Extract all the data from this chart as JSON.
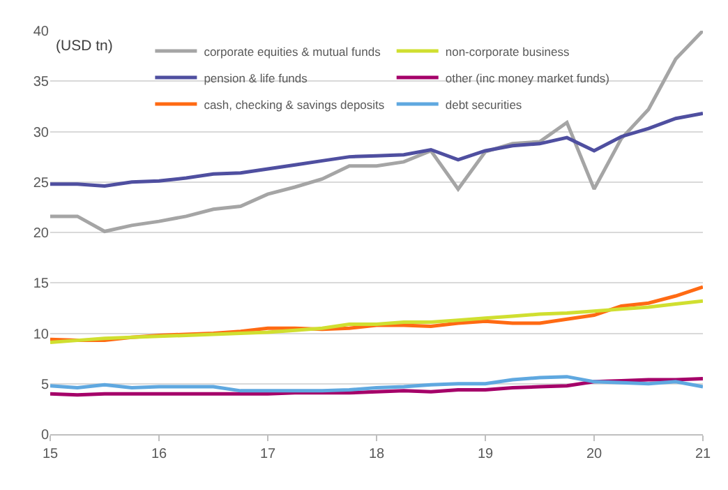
{
  "chart_data": {
    "type": "line",
    "annotations": [
      "(USD tn)"
    ],
    "x": [
      15,
      15.25,
      15.5,
      15.75,
      16,
      16.25,
      16.5,
      16.75,
      17,
      17.25,
      17.5,
      17.75,
      18,
      18.25,
      18.5,
      18.75,
      19,
      19.25,
      19.5,
      19.75,
      20,
      20.25,
      20.5,
      20.75,
      21
    ],
    "series": [
      {
        "name": "corporate equities & mutual funds",
        "color": "#a5a5a5",
        "values": [
          21.6,
          21.6,
          20.1,
          20.7,
          21.1,
          21.6,
          22.3,
          22.6,
          23.8,
          24.5,
          25.3,
          26.6,
          26.6,
          27.0,
          28.1,
          24.3,
          28.0,
          28.8,
          29.0,
          30.9,
          24.3,
          29.3,
          32.2,
          37.2,
          40.0
        ]
      },
      {
        "name": "pension & life funds",
        "color": "#4f4fa0",
        "values": [
          24.8,
          24.8,
          24.6,
          25.0,
          25.1,
          25.4,
          25.8,
          25.9,
          26.3,
          26.7,
          27.1,
          27.5,
          27.6,
          27.7,
          28.2,
          27.2,
          28.1,
          28.6,
          28.8,
          29.4,
          28.1,
          29.5,
          30.3,
          31.3,
          31.8
        ]
      },
      {
        "name": "cash, checking & savings deposits",
        "color": "#ff6a13",
        "values": [
          9.4,
          9.3,
          9.3,
          9.6,
          9.8,
          9.9,
          10.0,
          10.2,
          10.5,
          10.5,
          10.4,
          10.5,
          10.8,
          10.8,
          10.7,
          11.0,
          11.2,
          11.0,
          11.0,
          11.4,
          11.8,
          12.7,
          13.0,
          13.7,
          14.6
        ]
      },
      {
        "name": "non-corporate business",
        "color": "#d0df30",
        "values": [
          9.1,
          9.3,
          9.5,
          9.6,
          9.7,
          9.8,
          9.9,
          10.0,
          10.1,
          10.3,
          10.5,
          10.9,
          10.9,
          11.1,
          11.1,
          11.3,
          11.5,
          11.7,
          11.9,
          12.0,
          12.2,
          12.4,
          12.6,
          12.9,
          13.2
        ]
      },
      {
        "name": "other (inc money market funds)",
        "color": "#a50069",
        "values": [
          4.0,
          3.9,
          4.0,
          4.0,
          4.0,
          4.0,
          4.0,
          4.0,
          4.0,
          4.1,
          4.1,
          4.1,
          4.2,
          4.3,
          4.2,
          4.4,
          4.4,
          4.6,
          4.7,
          4.8,
          5.2,
          5.3,
          5.4,
          5.4,
          5.5
        ]
      },
      {
        "name": "debt securities",
        "color": "#5fa8e0",
        "values": [
          4.8,
          4.6,
          4.9,
          4.6,
          4.7,
          4.7,
          4.7,
          4.3,
          4.3,
          4.3,
          4.3,
          4.4,
          4.6,
          4.7,
          4.9,
          5.0,
          5.0,
          5.4,
          5.6,
          5.7,
          5.2,
          5.1,
          5.0,
          5.2,
          4.7
        ]
      }
    ],
    "xlim": [
      15,
      21
    ],
    "xticks": [
      15,
      16,
      17,
      18,
      19,
      20,
      21
    ],
    "ylim": [
      0,
      40
    ],
    "yticks": [
      0,
      5,
      10,
      15,
      20,
      25,
      30,
      35,
      40
    ],
    "grid": "y",
    "legend": "top",
    "marker": "none",
    "line_style": "solid"
  }
}
